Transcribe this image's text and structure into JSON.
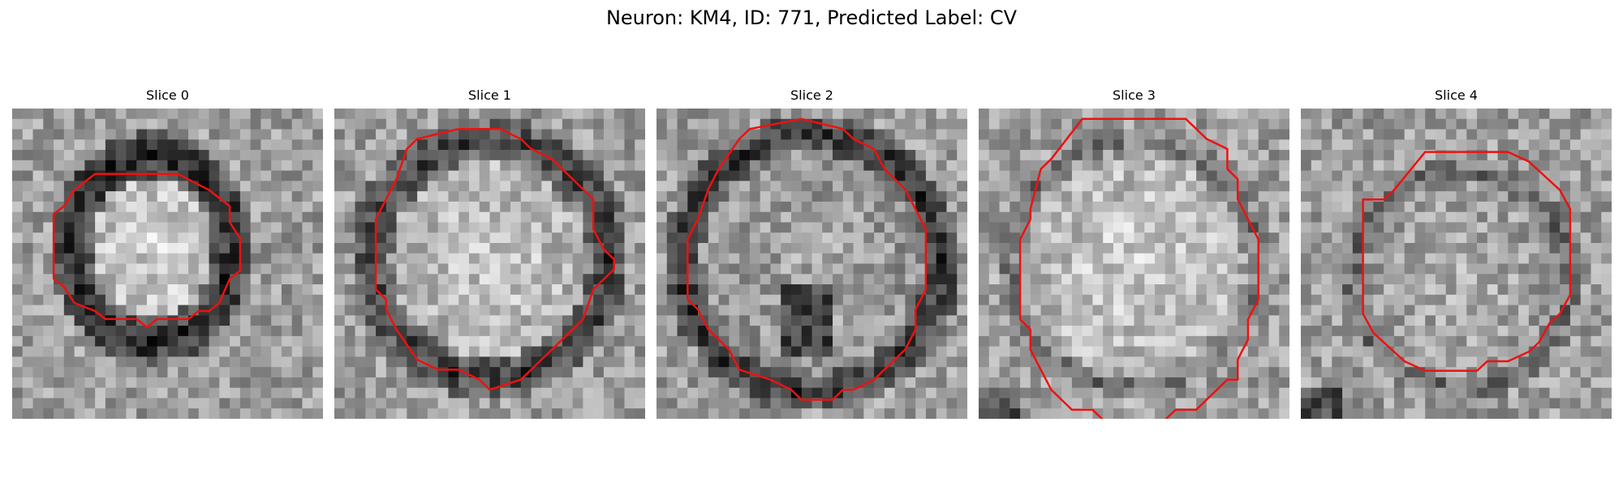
{
  "figure": {
    "title": "Neuron: KM4, ID: 771, Predicted Label: CV"
  },
  "panels": [
    {
      "title": "Slice 0"
    },
    {
      "title": "Slice 1"
    },
    {
      "title": "Slice 2"
    },
    {
      "title": "Slice 3"
    },
    {
      "title": "Slice 4"
    }
  ],
  "colors": {
    "contour": "#ee1111",
    "background": "#ffffff"
  }
}
